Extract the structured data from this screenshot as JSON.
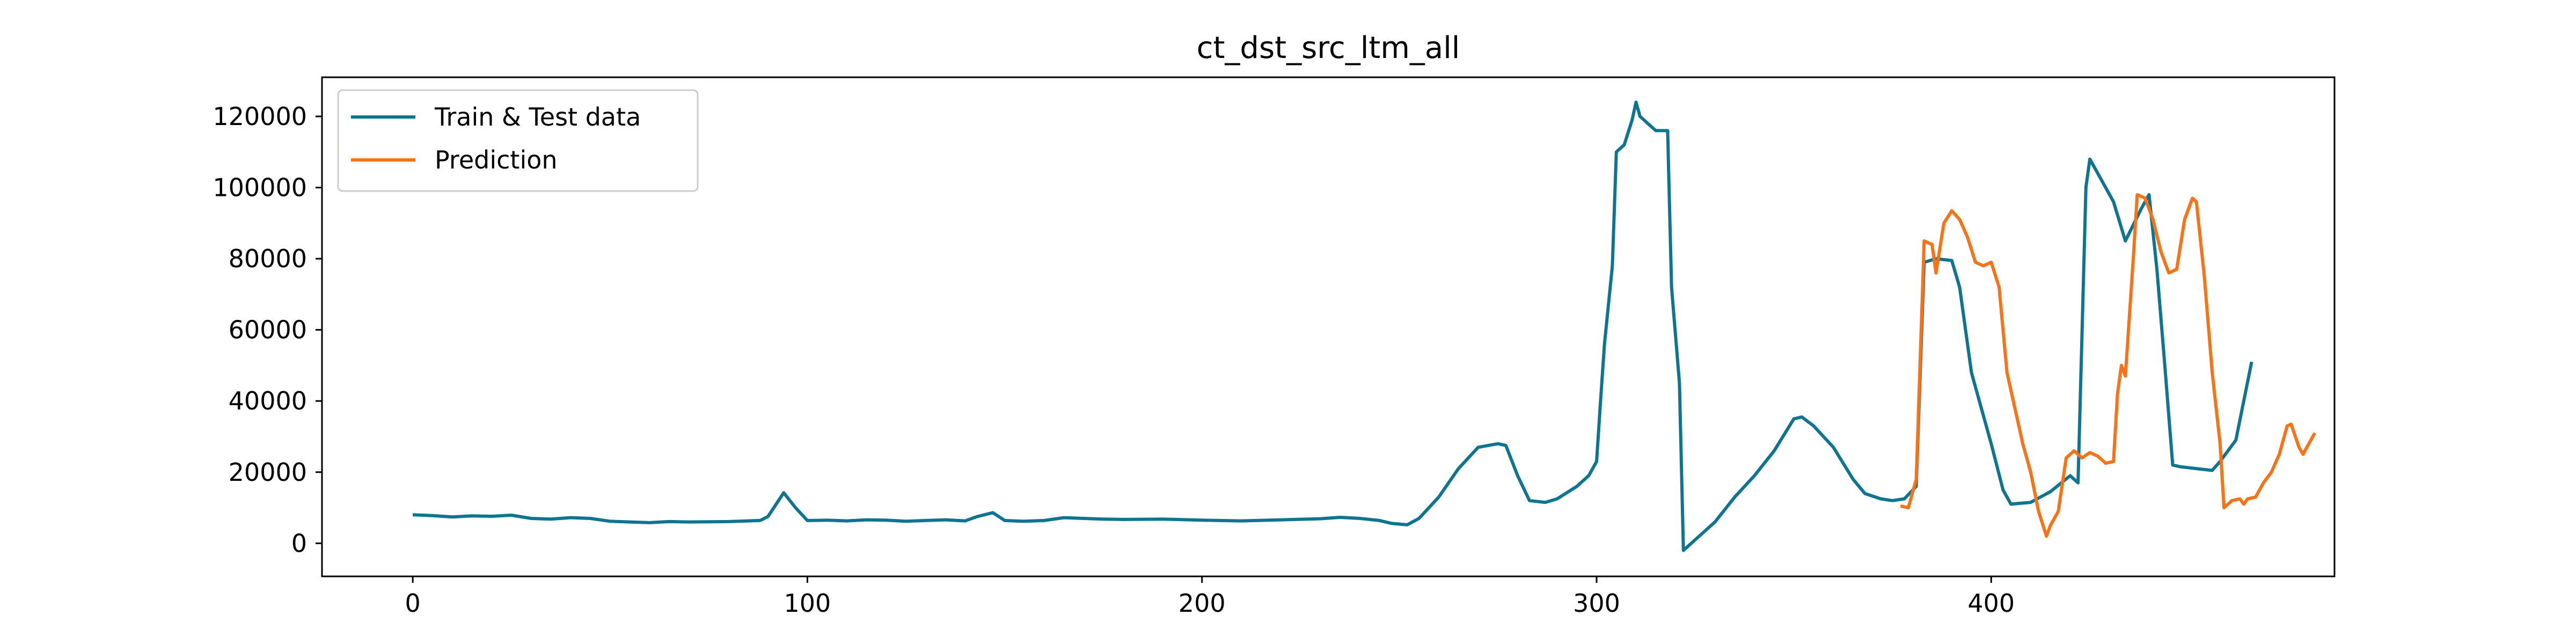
{
  "chart_data": {
    "type": "line",
    "title": "ct_dst_src_ltm_all",
    "xlabel": "",
    "ylabel": "",
    "xlim": [
      -23,
      487
    ],
    "ylim": [
      -9300,
      131000
    ],
    "xticks": [
      0,
      100,
      200,
      300,
      400
    ],
    "yticks": [
      0,
      20000,
      40000,
      60000,
      80000,
      100000,
      120000
    ],
    "grid": false,
    "legend_position": "top-left",
    "series": [
      {
        "name": "Train & Test data",
        "color": "#0e7490",
        "points": [
          [
            0,
            8000
          ],
          [
            5,
            7800
          ],
          [
            10,
            7400
          ],
          [
            15,
            7700
          ],
          [
            20,
            7600
          ],
          [
            25,
            7900
          ],
          [
            30,
            7000
          ],
          [
            35,
            6800
          ],
          [
            40,
            7200
          ],
          [
            45,
            7000
          ],
          [
            50,
            6200
          ],
          [
            55,
            6000
          ],
          [
            60,
            5800
          ],
          [
            65,
            6100
          ],
          [
            70,
            6000
          ],
          [
            80,
            6100
          ],
          [
            88,
            6400
          ],
          [
            90,
            7500
          ],
          [
            94,
            14200
          ],
          [
            97,
            10000
          ],
          [
            100,
            6400
          ],
          [
            105,
            6500
          ],
          [
            110,
            6300
          ],
          [
            115,
            6600
          ],
          [
            120,
            6500
          ],
          [
            125,
            6200
          ],
          [
            130,
            6400
          ],
          [
            135,
            6600
          ],
          [
            140,
            6300
          ],
          [
            143,
            7500
          ],
          [
            147,
            8600
          ],
          [
            150,
            6400
          ],
          [
            155,
            6200
          ],
          [
            160,
            6400
          ],
          [
            165,
            7200
          ],
          [
            170,
            7000
          ],
          [
            175,
            6800
          ],
          [
            180,
            6700
          ],
          [
            190,
            6800
          ],
          [
            200,
            6500
          ],
          [
            210,
            6300
          ],
          [
            220,
            6600
          ],
          [
            230,
            6900
          ],
          [
            235,
            7300
          ],
          [
            240,
            7000
          ],
          [
            245,
            6400
          ],
          [
            248,
            5600
          ],
          [
            252,
            5200
          ],
          [
            255,
            7000
          ],
          [
            260,
            13000
          ],
          [
            265,
            21000
          ],
          [
            270,
            27000
          ],
          [
            275,
            28000
          ],
          [
            277,
            27500
          ],
          [
            280,
            19000
          ],
          [
            283,
            12000
          ],
          [
            287,
            11500
          ],
          [
            290,
            12500
          ],
          [
            295,
            16000
          ],
          [
            298,
            19000
          ],
          [
            300,
            23000
          ],
          [
            301,
            40000
          ],
          [
            302,
            56000
          ],
          [
            304,
            78000
          ],
          [
            305,
            110000
          ],
          [
            307,
            112000
          ],
          [
            309,
            119000
          ],
          [
            310,
            124000
          ],
          [
            311,
            120000
          ],
          [
            313,
            118000
          ],
          [
            315,
            116000
          ],
          [
            318,
            116000
          ],
          [
            319,
            72000
          ],
          [
            321,
            45000
          ],
          [
            322,
            -2000
          ],
          [
            325,
            1000
          ],
          [
            330,
            6000
          ],
          [
            335,
            13000
          ],
          [
            340,
            19000
          ],
          [
            345,
            26000
          ],
          [
            350,
            35000
          ],
          [
            352,
            35500
          ],
          [
            355,
            33000
          ],
          [
            360,
            27000
          ],
          [
            365,
            18000
          ],
          [
            368,
            14000
          ],
          [
            372,
            12500
          ],
          [
            375,
            12000
          ],
          [
            378,
            12500
          ],
          [
            381,
            16000
          ],
          [
            383,
            79000
          ],
          [
            386,
            80000
          ],
          [
            390,
            79500
          ],
          [
            392,
            72000
          ],
          [
            395,
            48000
          ],
          [
            400,
            28000
          ],
          [
            403,
            15000
          ],
          [
            405,
            11000
          ],
          [
            410,
            11500
          ],
          [
            415,
            14500
          ],
          [
            420,
            19000
          ],
          [
            422,
            17000
          ],
          [
            424,
            100000
          ],
          [
            425,
            108000
          ],
          [
            428,
            102000
          ],
          [
            431,
            96000
          ],
          [
            434,
            85000
          ],
          [
            438,
            94000
          ],
          [
            440,
            98000
          ],
          [
            442,
            77000
          ],
          [
            444,
            50000
          ],
          [
            446,
            22000
          ],
          [
            448,
            21500
          ],
          [
            452,
            21000
          ],
          [
            456,
            20500
          ],
          [
            458,
            23000
          ],
          [
            462,
            29000
          ],
          [
            466,
            51000
          ]
        ]
      },
      {
        "name": "Prediction",
        "color": "#f97316",
        "points": [
          [
            377,
            10500
          ],
          [
            379,
            10000
          ],
          [
            381,
            18000
          ],
          [
            383,
            85000
          ],
          [
            385,
            84000
          ],
          [
            386,
            76000
          ],
          [
            388,
            90000
          ],
          [
            390,
            93500
          ],
          [
            392,
            91000
          ],
          [
            394,
            86000
          ],
          [
            396,
            79000
          ],
          [
            398,
            78000
          ],
          [
            400,
            79000
          ],
          [
            402,
            72000
          ],
          [
            404,
            48000
          ],
          [
            406,
            38000
          ],
          [
            408,
            28000
          ],
          [
            410,
            20000
          ],
          [
            412,
            9000
          ],
          [
            414,
            2000
          ],
          [
            415,
            5000
          ],
          [
            417,
            9000
          ],
          [
            419,
            24000
          ],
          [
            421,
            26000
          ],
          [
            423,
            24000
          ],
          [
            425,
            25500
          ],
          [
            427,
            24500
          ],
          [
            429,
            22500
          ],
          [
            431,
            23000
          ],
          [
            432,
            42000
          ],
          [
            433,
            50000
          ],
          [
            434,
            47000
          ],
          [
            436,
            80000
          ],
          [
            437,
            98000
          ],
          [
            439,
            97000
          ],
          [
            441,
            91000
          ],
          [
            443,
            82000
          ],
          [
            445,
            76000
          ],
          [
            447,
            77000
          ],
          [
            449,
            91000
          ],
          [
            451,
            97000
          ],
          [
            452,
            96000
          ],
          [
            454,
            75000
          ],
          [
            456,
            48000
          ],
          [
            458,
            28000
          ],
          [
            459,
            10000
          ],
          [
            461,
            12000
          ],
          [
            463,
            12500
          ],
          [
            464,
            11000
          ],
          [
            465,
            12500
          ],
          [
            467,
            13000
          ],
          [
            469,
            17000
          ],
          [
            471,
            20000
          ],
          [
            473,
            25000
          ],
          [
            475,
            33000
          ],
          [
            476,
            33500
          ],
          [
            478,
            27000
          ],
          [
            479,
            25000
          ],
          [
            481,
            29000
          ],
          [
            482,
            31000
          ]
        ]
      }
    ]
  }
}
